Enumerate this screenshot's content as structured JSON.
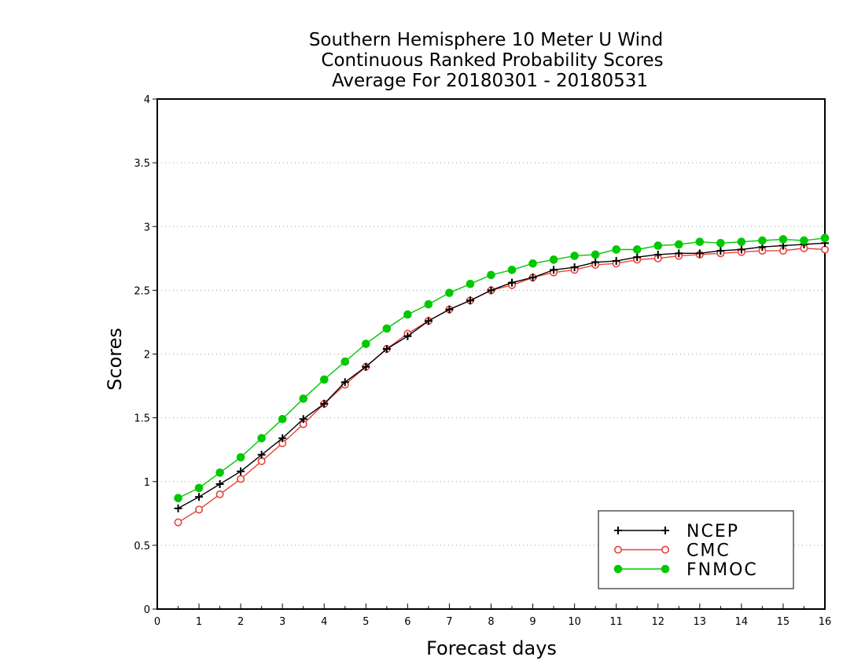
{
  "chart_data": {
    "type": "line",
    "title_lines": [
      "Southern Hemisphere 10 Meter U Wind",
      "Continuous Ranked Probability Scores",
      "Average For 20180301 - 20180531"
    ],
    "xlabel": "Forecast days",
    "ylabel": "Scores",
    "xlim": [
      0,
      16
    ],
    "ylim": [
      0,
      4
    ],
    "xticks": [
      "0",
      "1",
      "2",
      "3",
      "4",
      "5",
      "6",
      "7",
      "8",
      "9",
      "10",
      "11",
      "12",
      "13",
      "14",
      "15",
      "16"
    ],
    "yticks": [
      "0",
      "0.5",
      "1",
      "1.5",
      "2",
      "2.5",
      "3",
      "3.5",
      "4"
    ],
    "grid": "horizontal dotted",
    "legend_position": "bottom-right",
    "x": [
      0.5,
      1,
      1.5,
      2,
      2.5,
      3,
      3.5,
      4,
      4.5,
      5,
      5.5,
      6,
      6.5,
      7,
      7.5,
      8,
      8.5,
      9,
      9.5,
      10,
      10.5,
      11,
      11.5,
      12,
      12.5,
      13,
      13.5,
      14,
      14.5,
      15,
      15.5,
      16
    ],
    "series": [
      {
        "name": "NCEP",
        "color": "#000000",
        "marker": "plus",
        "values": [
          0.79,
          0.88,
          0.98,
          1.08,
          1.21,
          1.34,
          1.49,
          1.61,
          1.78,
          1.9,
          2.04,
          2.14,
          2.26,
          2.35,
          2.42,
          2.5,
          2.56,
          2.6,
          2.66,
          2.68,
          2.72,
          2.73,
          2.76,
          2.78,
          2.79,
          2.79,
          2.81,
          2.82,
          2.84,
          2.85,
          2.86,
          2.87
        ]
      },
      {
        "name": "CMC",
        "color": "#e8413c",
        "marker": "open-circle",
        "values": [
          0.68,
          0.78,
          0.9,
          1.02,
          1.16,
          1.3,
          1.45,
          1.61,
          1.76,
          1.9,
          2.04,
          2.16,
          2.26,
          2.35,
          2.42,
          2.5,
          2.54,
          2.6,
          2.64,
          2.66,
          2.7,
          2.71,
          2.74,
          2.75,
          2.77,
          2.78,
          2.79,
          2.8,
          2.81,
          2.81,
          2.83,
          2.82
        ]
      },
      {
        "name": "FNMOC",
        "color": "#00c800",
        "marker": "filled-circle",
        "values": [
          0.87,
          0.95,
          1.07,
          1.19,
          1.34,
          1.49,
          1.65,
          1.8,
          1.94,
          2.08,
          2.2,
          2.31,
          2.39,
          2.48,
          2.55,
          2.62,
          2.66,
          2.71,
          2.74,
          2.77,
          2.78,
          2.82,
          2.82,
          2.85,
          2.86,
          2.88,
          2.87,
          2.88,
          2.89,
          2.9,
          2.89,
          2.91
        ]
      }
    ]
  }
}
